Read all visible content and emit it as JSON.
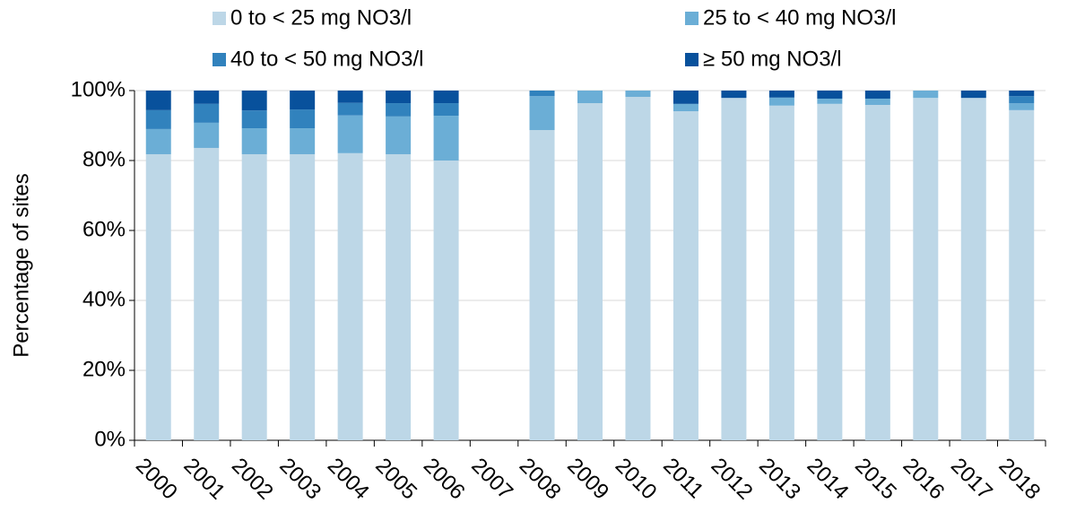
{
  "chart_data": {
    "type": "stacked_bar",
    "y_label": "Percentage of sites",
    "categories": [
      "2000",
      "2001",
      "2002",
      "2003",
      "2004",
      "2005",
      "2006",
      "2007",
      "2008",
      "2009",
      "2010",
      "2011",
      "2012",
      "2013",
      "2014",
      "2015",
      "2016",
      "2017",
      "2018"
    ],
    "series": [
      {
        "name": "0 to < 25 mg NO3/l",
        "color": "#bdd7e7",
        "values": [
          81.8,
          83.6,
          81.8,
          81.8,
          82.1,
          81.8,
          80.0,
          null,
          88.7,
          96.4,
          98.2,
          94.1,
          97.9,
          95.7,
          96.2,
          95.9,
          97.9,
          97.9,
          94.4
        ]
      },
      {
        "name": "25 to < 40 mg NO3/l",
        "color": "#6baed6",
        "values": [
          7.2,
          7.2,
          7.4,
          7.4,
          10.8,
          10.8,
          12.8,
          null,
          9.7,
          3.6,
          1.8,
          2.1,
          0,
          2.3,
          1.5,
          1.8,
          2.1,
          0,
          2.0
        ]
      },
      {
        "name": "40 to < 50 mg NO3/l",
        "color": "#3182bd",
        "values": [
          5.4,
          5.4,
          5.1,
          5.4,
          3.6,
          3.8,
          3.6,
          null,
          1.6,
          0,
          0,
          0,
          0,
          0,
          0,
          0,
          0,
          0,
          2.0
        ]
      },
      {
        "name": "≥ 50 mg NO3/l",
        "color": "#08519c",
        "values": [
          5.6,
          3.8,
          5.7,
          5.4,
          3.5,
          3.6,
          3.6,
          null,
          0,
          0,
          0,
          3.8,
          2.1,
          2.0,
          2.3,
          2.3,
          0,
          2.1,
          1.6
        ]
      }
    ],
    "ylim": [
      0,
      100
    ],
    "yticks": [
      {
        "value": 0,
        "label": "0%"
      },
      {
        "value": 20,
        "label": "20%"
      },
      {
        "value": 40,
        "label": "40%"
      },
      {
        "value": 60,
        "label": "60%"
      },
      {
        "value": 80,
        "label": "80%"
      },
      {
        "value": 100,
        "label": "100%"
      }
    ],
    "grid": true,
    "legend": "top"
  }
}
